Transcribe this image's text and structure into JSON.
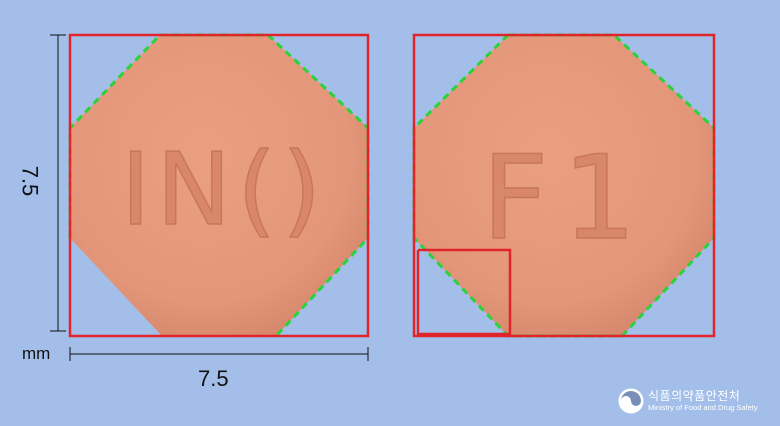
{
  "dimensions": {
    "height": "7.5",
    "width": "7.5",
    "unit": "mm"
  },
  "tablets": {
    "front": {
      "imprint": "IN()"
    },
    "back": {
      "imprint": "F1"
    },
    "color": "#e49a7e",
    "shade_color": "#d4876b"
  },
  "marker_colors": {
    "box": "#e0242a",
    "contour": "#2bd33a"
  },
  "logo": {
    "name_ko": "식품의약품안전처",
    "name_en": "Ministry of Food and Drug Safety",
    "icon": "mfds-emblem-icon"
  }
}
